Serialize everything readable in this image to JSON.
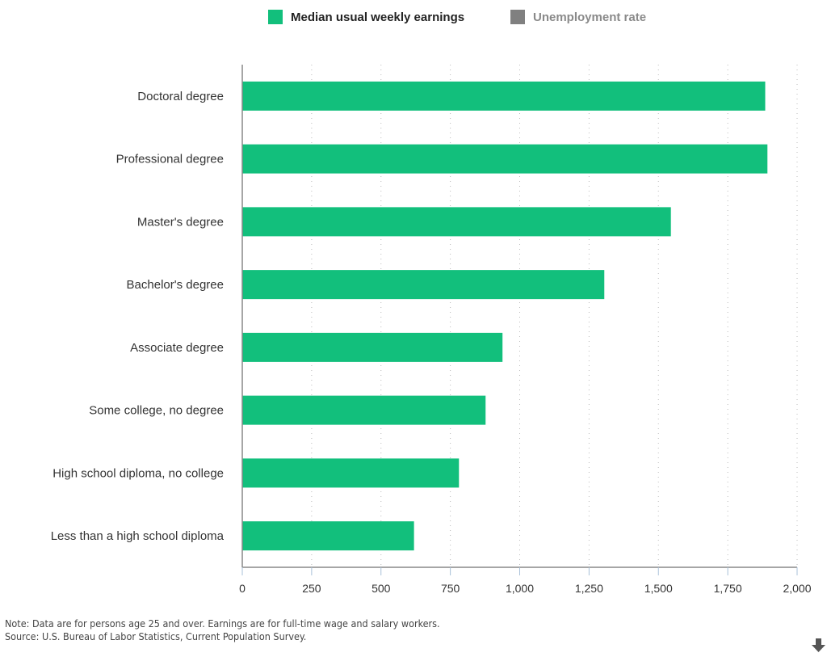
{
  "legend": {
    "items": [
      {
        "label": "Median usual weekly earnings",
        "color": "#12bf7c",
        "active": true
      },
      {
        "label": "Unemployment rate",
        "color": "#808080",
        "active": false
      }
    ]
  },
  "footer": {
    "note": "Note: Data are for persons age 25 and over. Earnings are for full-time wage and salary workers.",
    "source": "Source: U.S. Bureau of Labor Statistics, Current Population Survey."
  },
  "download_icon": "download-arrow-icon",
  "chart_data": {
    "type": "bar",
    "orientation": "horizontal",
    "title": "",
    "xlabel": "",
    "ylabel": "",
    "categories": [
      "Doctoral degree",
      "Professional degree",
      "Master's degree",
      "Bachelor's degree",
      "Associate degree",
      "Some college, no degree",
      "High school diploma, no college",
      "Less than a high school diploma"
    ],
    "series": [
      {
        "name": "Median usual weekly earnings",
        "color": "#12bf7c",
        "values": [
          1885,
          1893,
          1545,
          1305,
          938,
          877,
          781,
          619
        ]
      }
    ],
    "xlim": [
      0,
      2000
    ],
    "xticks": [
      0,
      250,
      500,
      750,
      1000,
      1250,
      1500,
      1750,
      2000
    ],
    "xtick_labels": [
      "0",
      "250",
      "500",
      "750",
      "1,000",
      "1,250",
      "1,500",
      "1,750",
      "2,000"
    ],
    "grid": "vertical dotted",
    "legend_position": "top-center"
  }
}
